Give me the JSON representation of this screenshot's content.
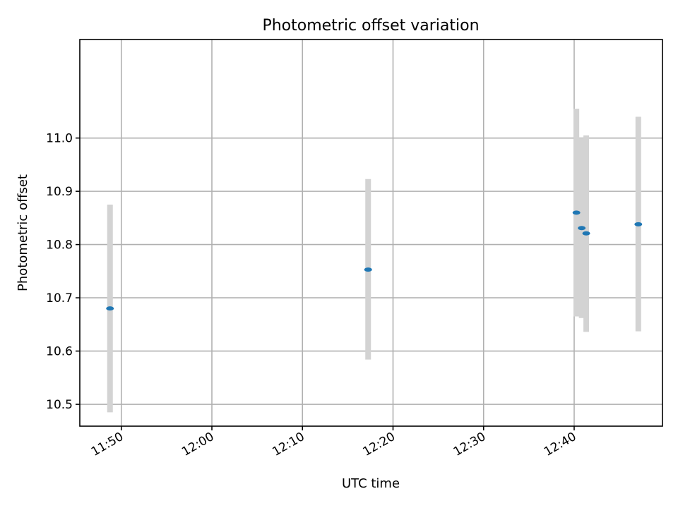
{
  "chart_data": {
    "type": "scatter",
    "title": "Photometric offset variation",
    "xlabel": "UTC time",
    "ylabel": "Photometric offset",
    "x_ticks": [
      "11:50",
      "12:00",
      "12:10",
      "12:20",
      "12:30",
      "12:40"
    ],
    "y_ticks": [
      "10.5",
      "10.6",
      "10.7",
      "10.8",
      "10.9",
      "11.0"
    ],
    "xlim": [
      "11:45:25",
      "12:49:45"
    ],
    "ylim": [
      10.459,
      11.185
    ],
    "grid": true,
    "colors": {
      "point": "#1f77b4",
      "errorbar": "#d3d3d3"
    },
    "points": [
      {
        "x": "11:48:45",
        "y": 10.68,
        "yerr_low": 10.485,
        "yerr_high": 10.875
      },
      {
        "x": "12:17:15",
        "y": 10.753,
        "yerr_low": 10.584,
        "yerr_high": 10.923
      },
      {
        "x": "12:40:15",
        "y": 10.86,
        "yerr_low": 10.665,
        "yerr_high": 11.055
      },
      {
        "x": "12:40:50",
        "y": 10.831,
        "yerr_low": 10.662,
        "yerr_high": 11.0
      },
      {
        "x": "12:41:20",
        "y": 10.821,
        "yerr_low": 10.636,
        "yerr_high": 11.005
      },
      {
        "x": "12:47:05",
        "y": 10.838,
        "yerr_low": 10.637,
        "yerr_high": 11.04
      }
    ]
  }
}
